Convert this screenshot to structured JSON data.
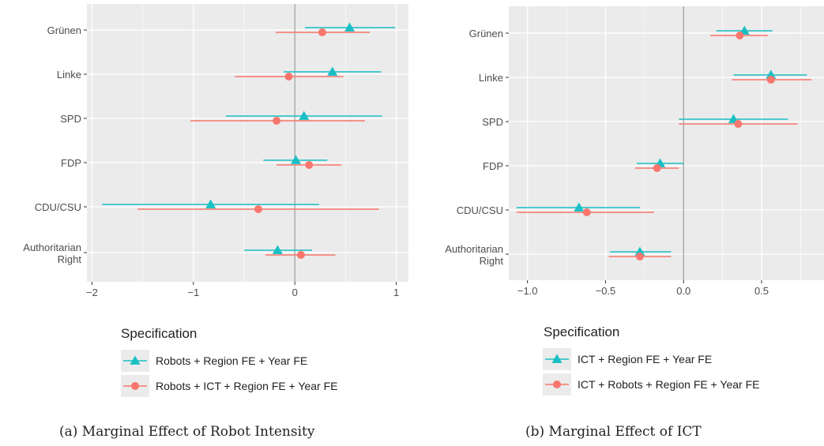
{
  "chart_data": [
    {
      "type": "forest",
      "caption": "(a) Marginal Effect of Robot Intensity",
      "categories": [
        "Grünen",
        "Linke",
        "SPD",
        "FDP",
        "CDU/CSU",
        "Authoritarian Right"
      ],
      "xlim": [
        -2.05,
        1.12
      ],
      "xticks": [
        -2,
        -1,
        0,
        1
      ],
      "xtick_labels": [
        "−2",
        "−1",
        "0",
        "1"
      ],
      "legend_title": "Specification",
      "series": [
        {
          "name": "Robots + Region FE + Year FE",
          "color": "#19BFC4",
          "marker": "triangle",
          "points": [
            {
              "est": 0.54,
              "lo": 0.1,
              "hi": 0.99
            },
            {
              "est": 0.37,
              "lo": -0.11,
              "hi": 0.85
            },
            {
              "est": 0.09,
              "lo": -0.68,
              "hi": 0.86
            },
            {
              "est": 0.01,
              "lo": -0.31,
              "hi": 0.32
            },
            {
              "est": -0.83,
              "lo": -1.9,
              "hi": 0.24
            },
            {
              "est": -0.17,
              "lo": -0.5,
              "hi": 0.17
            }
          ]
        },
        {
          "name": "Robots + ICT + Region FE + Year FE",
          "color": "#F8766D",
          "marker": "circle",
          "points": [
            {
              "est": 0.27,
              "lo": -0.19,
              "hi": 0.74
            },
            {
              "est": -0.06,
              "lo": -0.59,
              "hi": 0.48
            },
            {
              "est": -0.18,
              "lo": -1.03,
              "hi": 0.69
            },
            {
              "est": 0.14,
              "lo": -0.18,
              "hi": 0.46
            },
            {
              "est": -0.36,
              "lo": -1.55,
              "hi": 0.83
            },
            {
              "est": 0.06,
              "lo": -0.29,
              "hi": 0.4
            }
          ]
        }
      ]
    },
    {
      "type": "forest",
      "caption": "(b) Marginal Effect of ICT",
      "categories": [
        "Grünen",
        "Linke",
        "SPD",
        "FDP",
        "CDU/CSU",
        "Authoritarian Right"
      ],
      "xlim": [
        -1.12,
        0.9
      ],
      "xticks": [
        -1.0,
        -0.5,
        0.0,
        0.5
      ],
      "xtick_labels": [
        "−1.0",
        "−0.5",
        "0.0",
        "0.5"
      ],
      "legend_title": "Specification",
      "series": [
        {
          "name": "ICT + Region FE + Year FE",
          "color": "#19BFC4",
          "marker": "triangle",
          "points": [
            {
              "est": 0.39,
              "lo": 0.21,
              "hi": 0.57
            },
            {
              "est": 0.56,
              "lo": 0.32,
              "hi": 0.79
            },
            {
              "est": 0.32,
              "lo": -0.03,
              "hi": 0.67
            },
            {
              "est": -0.15,
              "lo": -0.3,
              "hi": 0.0
            },
            {
              "est": -0.67,
              "lo": -1.07,
              "hi": -0.28
            },
            {
              "est": -0.28,
              "lo": -0.47,
              "hi": -0.08
            }
          ]
        },
        {
          "name": "ICT + Robots + Region FE + Year FE",
          "color": "#F8766D",
          "marker": "circle",
          "points": [
            {
              "est": 0.36,
              "lo": 0.17,
              "hi": 0.54
            },
            {
              "est": 0.56,
              "lo": 0.31,
              "hi": 0.82
            },
            {
              "est": 0.35,
              "lo": -0.03,
              "hi": 0.73
            },
            {
              "est": -0.17,
              "lo": -0.31,
              "hi": -0.03
            },
            {
              "est": -0.62,
              "lo": -1.07,
              "hi": -0.19
            },
            {
              "est": -0.28,
              "lo": -0.48,
              "hi": -0.08
            }
          ]
        }
      ]
    }
  ]
}
